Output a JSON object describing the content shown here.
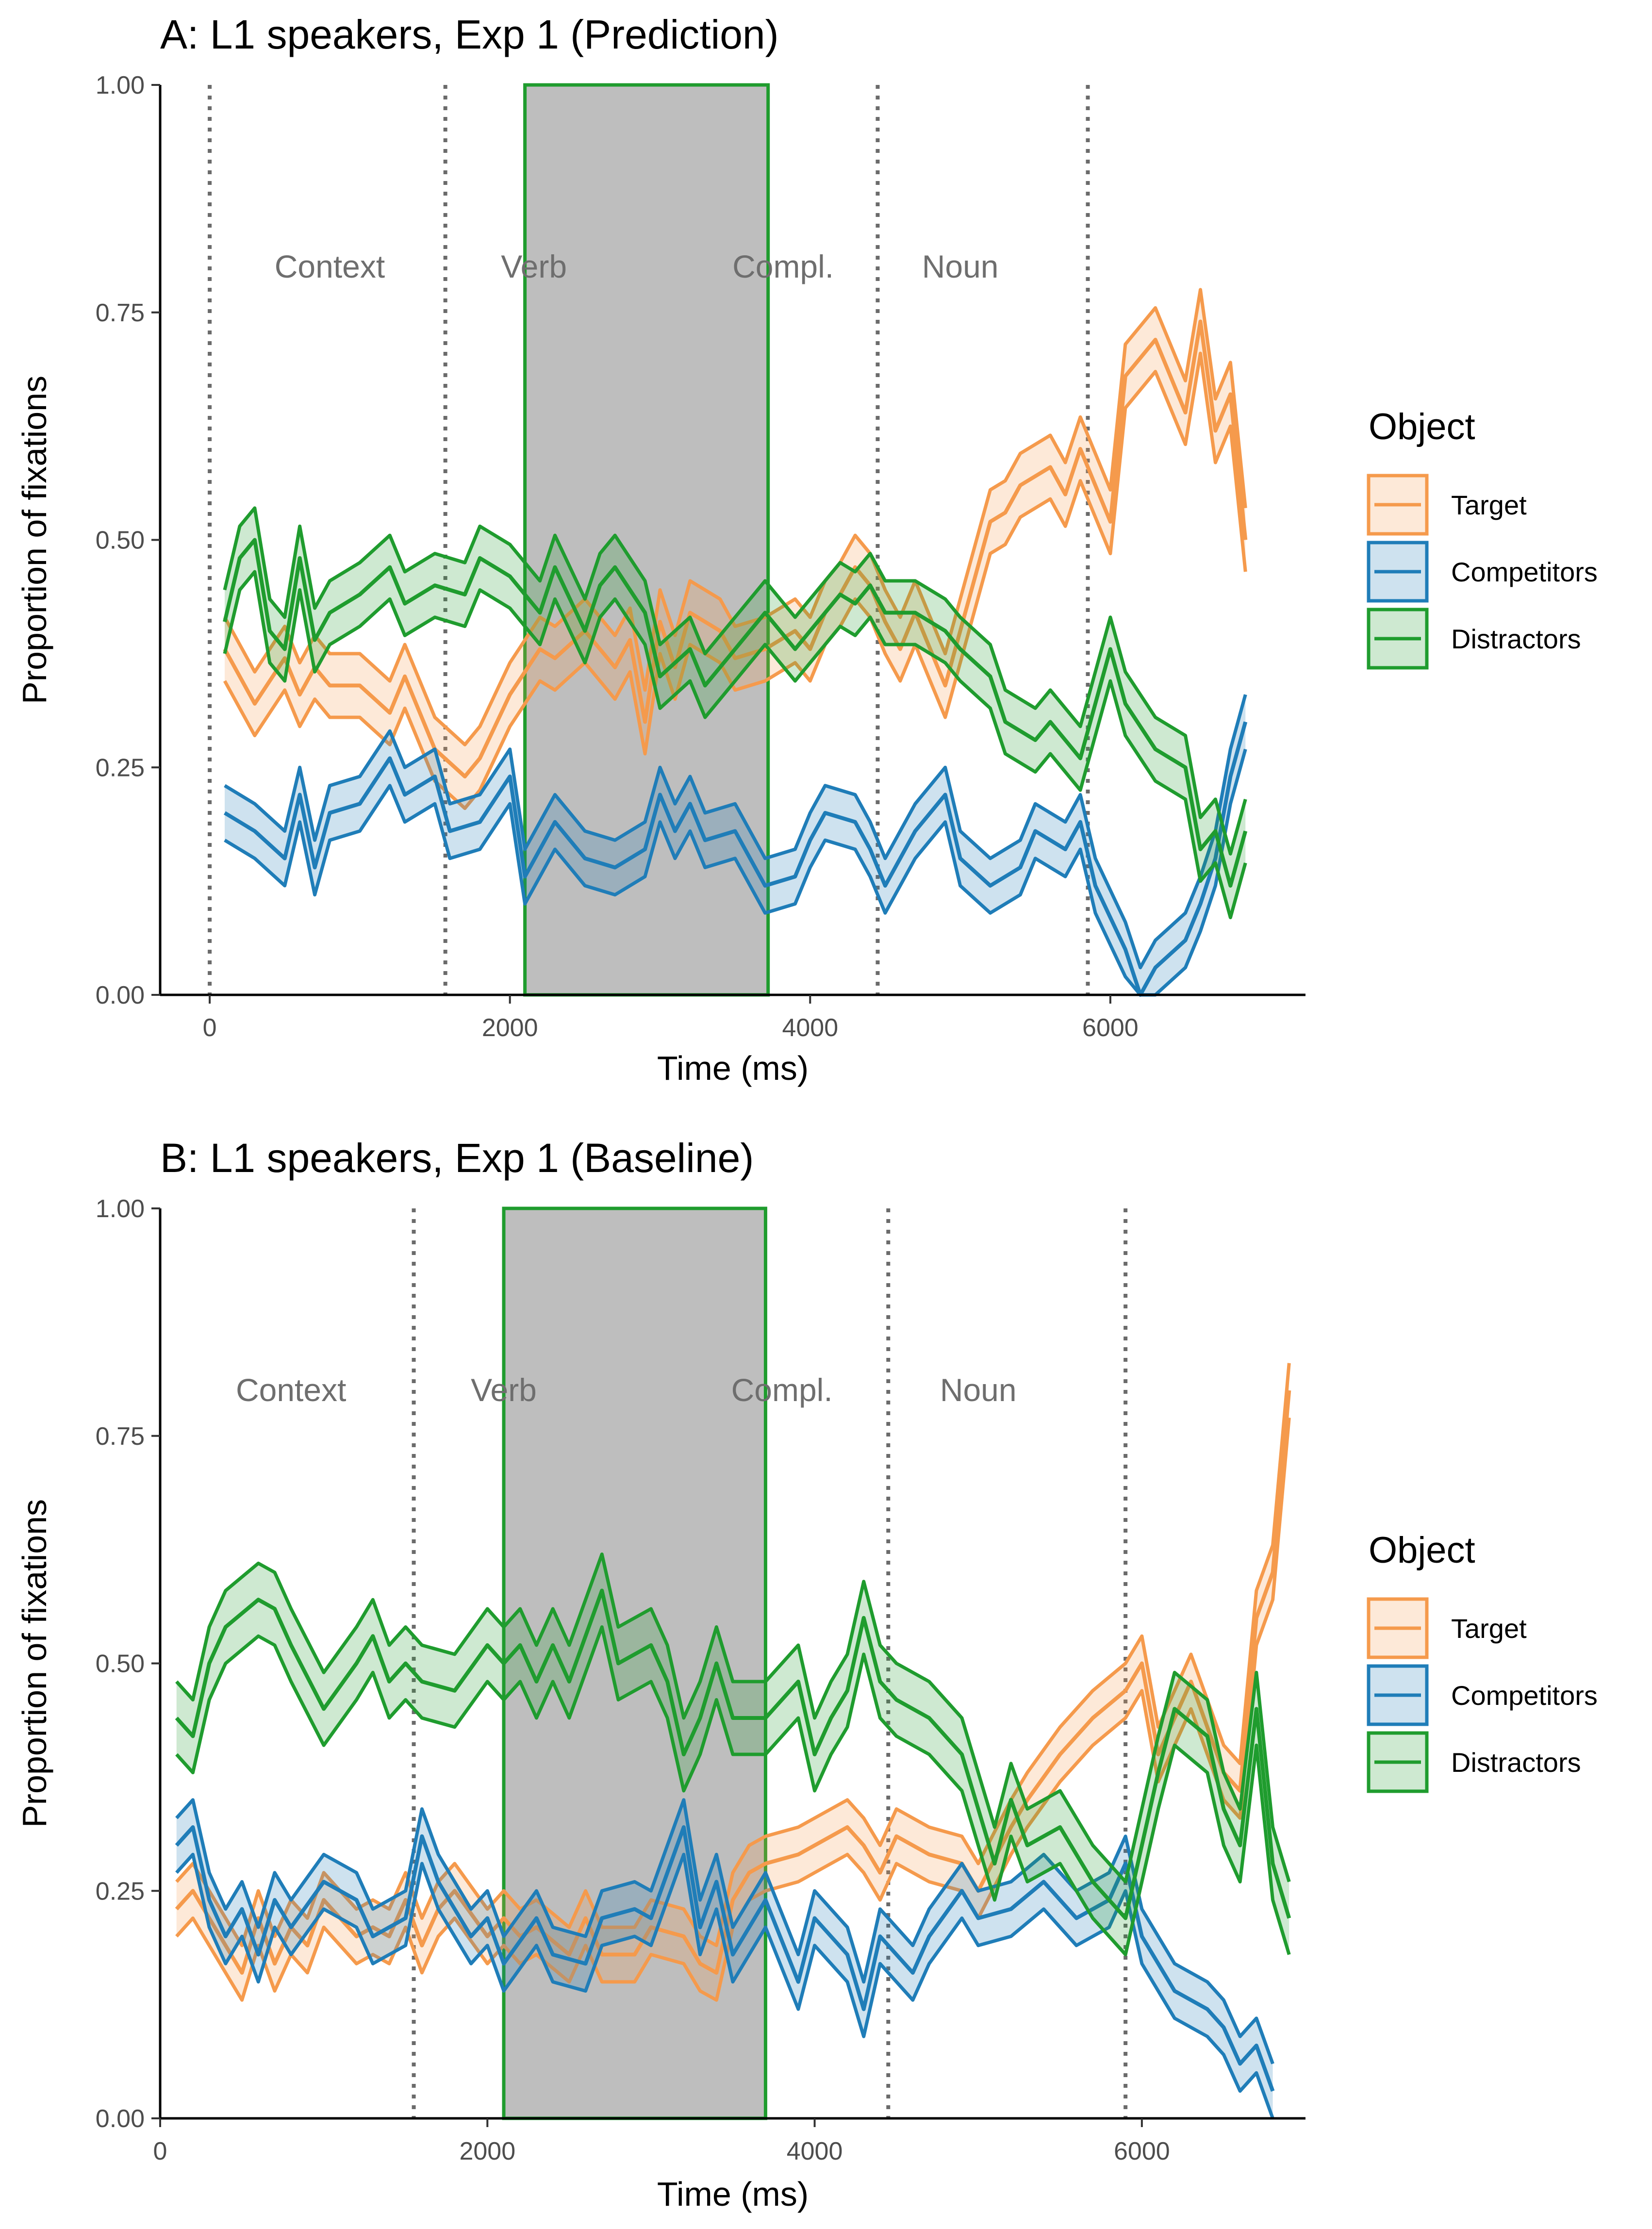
{
  "colors": {
    "Target": "#F59A4C",
    "Competitors": "#1F7DB8",
    "Distractors": "#1F9C2E",
    "shade": "#BEBEBE",
    "shade_border": "#1F9C2E"
  },
  "chart_data": [
    {
      "type": "line",
      "title": "A: L1 speakers, Exp 1 (Prediction)",
      "xlabel": "Time (ms)",
      "ylabel": "Proportion of fixations",
      "xlim": [
        -330,
        7300
      ],
      "ylim": [
        0,
        1
      ],
      "x_ticks": [
        "0",
        "2000",
        "4000",
        "6000"
      ],
      "y_ticks": [
        "0.00",
        "0.25",
        "0.50",
        "0.75",
        "1.00"
      ],
      "shaded_window": [
        2100,
        3720
      ],
      "boundaries": [
        0,
        1570,
        5850,
        4450
      ],
      "regions": [
        {
          "label": "Context",
          "x": 800,
          "y": 0.8
        },
        {
          "label": "Verb",
          "x": 2160,
          "y": 0.8
        },
        {
          "label": "Compl.",
          "x": 3820,
          "y": 0.8
        },
        {
          "label": "Noun",
          "x": 5000,
          "y": 0.8
        }
      ],
      "legend_title": "Object",
      "legend": [
        "Target",
        "Competitors",
        "Distractors"
      ],
      "series": [
        {
          "name": "Target",
          "x": [
            100,
            300,
            500,
            600,
            700,
            800,
            1000,
            1200,
            1300,
            1500,
            1700,
            1800,
            2000,
            2200,
            2300,
            2500,
            2700,
            2800,
            2900,
            3000,
            3100,
            3200,
            3400,
            3500,
            3700,
            3900,
            4000,
            4100,
            4200,
            4300,
            4400,
            4500,
            4600,
            4700,
            4900,
            5000,
            5200,
            5300,
            5400,
            5600,
            5700,
            5800,
            6000,
            6100,
            6300,
            6500,
            6600,
            6700,
            6800,
            6900
          ],
          "values": [
            0.38,
            0.32,
            0.37,
            0.33,
            0.36,
            0.34,
            0.34,
            0.31,
            0.35,
            0.27,
            0.24,
            0.26,
            0.33,
            0.38,
            0.37,
            0.4,
            0.36,
            0.39,
            0.3,
            0.41,
            0.36,
            0.42,
            0.4,
            0.37,
            0.38,
            0.4,
            0.38,
            0.42,
            0.44,
            0.47,
            0.45,
            0.41,
            0.38,
            0.42,
            0.34,
            0.4,
            0.52,
            0.53,
            0.56,
            0.58,
            0.55,
            0.6,
            0.52,
            0.68,
            0.72,
            0.64,
            0.74,
            0.62,
            0.66,
            0.5
          ],
          "ci": 0.035
        },
        {
          "name": "Competitors",
          "x": [
            100,
            300,
            500,
            600,
            700,
            800,
            1000,
            1200,
            1300,
            1500,
            1600,
            1800,
            2000,
            2100,
            2300,
            2500,
            2700,
            2900,
            3000,
            3100,
            3200,
            3300,
            3500,
            3700,
            3900,
            4000,
            4100,
            4300,
            4400,
            4500,
            4700,
            4900,
            5000,
            5200,
            5400,
            5500,
            5700,
            5800,
            5900,
            6100,
            6200,
            6300,
            6500,
            6600,
            6700,
            6800,
            6900
          ],
          "values": [
            0.2,
            0.18,
            0.15,
            0.22,
            0.14,
            0.2,
            0.21,
            0.26,
            0.22,
            0.24,
            0.18,
            0.19,
            0.24,
            0.13,
            0.19,
            0.15,
            0.14,
            0.16,
            0.22,
            0.18,
            0.21,
            0.17,
            0.18,
            0.12,
            0.13,
            0.17,
            0.2,
            0.19,
            0.16,
            0.12,
            0.18,
            0.22,
            0.15,
            0.12,
            0.14,
            0.18,
            0.16,
            0.19,
            0.12,
            0.05,
            0.0,
            0.03,
            0.06,
            0.1,
            0.15,
            0.24,
            0.3
          ],
          "ci": 0.03
        },
        {
          "name": "Distractors",
          "x": [
            100,
            200,
            300,
            400,
            500,
            600,
            700,
            800,
            1000,
            1200,
            1300,
            1500,
            1700,
            1800,
            2000,
            2100,
            2200,
            2300,
            2500,
            2600,
            2700,
            2900,
            3000,
            3200,
            3300,
            3500,
            3700,
            3900,
            4000,
            4200,
            4300,
            4400,
            4500,
            4700,
            4900,
            5000,
            5200,
            5300,
            5500,
            5600,
            5800,
            5900,
            6000,
            6100,
            6300,
            6500,
            6600,
            6700,
            6800,
            6900
          ],
          "values": [
            0.41,
            0.48,
            0.5,
            0.4,
            0.38,
            0.48,
            0.39,
            0.42,
            0.44,
            0.47,
            0.43,
            0.45,
            0.44,
            0.48,
            0.46,
            0.44,
            0.42,
            0.47,
            0.4,
            0.45,
            0.47,
            0.42,
            0.35,
            0.38,
            0.34,
            0.38,
            0.42,
            0.38,
            0.4,
            0.44,
            0.43,
            0.45,
            0.42,
            0.42,
            0.4,
            0.38,
            0.35,
            0.3,
            0.28,
            0.3,
            0.26,
            0.32,
            0.38,
            0.32,
            0.27,
            0.25,
            0.16,
            0.18,
            0.12,
            0.18
          ],
          "ci": 0.035
        }
      ]
    },
    {
      "type": "line",
      "title": "B: L1 speakers, Exp 1 (Baseline)",
      "xlabel": "Time (ms)",
      "ylabel": "Proportion of fixations",
      "xlim": [
        0,
        7000
      ],
      "ylim": [
        0,
        1
      ],
      "x_ticks": [
        "0",
        "2000",
        "4000",
        "6000"
      ],
      "y_ticks": [
        "0.00",
        "0.25",
        "0.50",
        "0.75",
        "1.00"
      ],
      "shaded_window": [
        2100,
        3700
      ],
      "boundaries": [
        1550,
        4450,
        5900
      ],
      "regions": [
        {
          "label": "Context",
          "x": 800,
          "y": 0.8
        },
        {
          "label": "Verb",
          "x": 2100,
          "y": 0.8
        },
        {
          "label": "Compl.",
          "x": 3800,
          "y": 0.8
        },
        {
          "label": "Noun",
          "x": 5000,
          "y": 0.8
        }
      ],
      "legend_title": "Object",
      "legend": [
        "Target",
        "Competitors",
        "Distractors"
      ],
      "series": [
        {
          "name": "Target",
          "x": [
            100,
            200,
            300,
            500,
            600,
            700,
            800,
            900,
            1000,
            1200,
            1300,
            1400,
            1500,
            1600,
            1700,
            1800,
            2000,
            2100,
            2200,
            2300,
            2500,
            2600,
            2700,
            2900,
            3000,
            3200,
            3300,
            3400,
            3500,
            3600,
            3700,
            3900,
            4000,
            4200,
            4300,
            4400,
            4500,
            4700,
            4900,
            5000,
            5200,
            5300,
            5500,
            5700,
            5900,
            6000,
            6100,
            6300,
            6500,
            6600,
            6700,
            6800,
            6900
          ],
          "values": [
            0.23,
            0.25,
            0.22,
            0.16,
            0.22,
            0.17,
            0.21,
            0.19,
            0.24,
            0.2,
            0.21,
            0.2,
            0.24,
            0.19,
            0.23,
            0.25,
            0.2,
            0.22,
            0.2,
            0.21,
            0.18,
            0.22,
            0.18,
            0.18,
            0.21,
            0.2,
            0.17,
            0.16,
            0.24,
            0.27,
            0.28,
            0.29,
            0.3,
            0.32,
            0.3,
            0.27,
            0.31,
            0.29,
            0.28,
            0.25,
            0.32,
            0.35,
            0.4,
            0.44,
            0.47,
            0.5,
            0.4,
            0.48,
            0.38,
            0.36,
            0.55,
            0.6,
            0.8
          ],
          "ci": 0.03
        },
        {
          "name": "Competitors",
          "x": [
            100,
            200,
            300,
            400,
            500,
            600,
            700,
            800,
            1000,
            1200,
            1300,
            1500,
            1600,
            1700,
            1900,
            2000,
            2100,
            2300,
            2400,
            2600,
            2700,
            2900,
            3000,
            3200,
            3300,
            3400,
            3500,
            3700,
            3900,
            4000,
            4200,
            4300,
            4400,
            4600,
            4700,
            4900,
            5000,
            5200,
            5400,
            5600,
            5800,
            5900,
            6000,
            6200,
            6400,
            6500,
            6600,
            6700,
            6800
          ],
          "values": [
            0.3,
            0.32,
            0.24,
            0.2,
            0.23,
            0.18,
            0.24,
            0.21,
            0.26,
            0.24,
            0.2,
            0.22,
            0.31,
            0.26,
            0.2,
            0.22,
            0.17,
            0.22,
            0.18,
            0.17,
            0.22,
            0.23,
            0.22,
            0.32,
            0.21,
            0.26,
            0.18,
            0.24,
            0.15,
            0.22,
            0.18,
            0.12,
            0.2,
            0.16,
            0.2,
            0.25,
            0.22,
            0.23,
            0.26,
            0.22,
            0.24,
            0.28,
            0.2,
            0.14,
            0.12,
            0.1,
            0.06,
            0.08,
            0.03
          ],
          "ci": 0.03
        },
        {
          "name": "Distractors",
          "x": [
            100,
            200,
            300,
            400,
            600,
            700,
            800,
            1000,
            1200,
            1300,
            1400,
            1500,
            1600,
            1800,
            2000,
            2100,
            2200,
            2300,
            2400,
            2500,
            2600,
            2700,
            2800,
            3000,
            3100,
            3200,
            3300,
            3400,
            3500,
            3700,
            3900,
            4000,
            4100,
            4200,
            4300,
            4400,
            4500,
            4700,
            4900,
            5000,
            5100,
            5200,
            5300,
            5500,
            5700,
            5900,
            6000,
            6100,
            6200,
            6400,
            6500,
            6600,
            6700,
            6800,
            6900
          ],
          "values": [
            0.44,
            0.42,
            0.5,
            0.54,
            0.57,
            0.56,
            0.52,
            0.45,
            0.5,
            0.53,
            0.48,
            0.5,
            0.48,
            0.47,
            0.52,
            0.5,
            0.52,
            0.48,
            0.52,
            0.48,
            0.53,
            0.58,
            0.5,
            0.52,
            0.48,
            0.4,
            0.44,
            0.5,
            0.44,
            0.44,
            0.48,
            0.4,
            0.44,
            0.47,
            0.55,
            0.48,
            0.46,
            0.44,
            0.4,
            0.34,
            0.28,
            0.35,
            0.3,
            0.32,
            0.26,
            0.22,
            0.3,
            0.38,
            0.45,
            0.42,
            0.34,
            0.3,
            0.45,
            0.28,
            0.22
          ],
          "ci": 0.04
        }
      ]
    }
  ]
}
